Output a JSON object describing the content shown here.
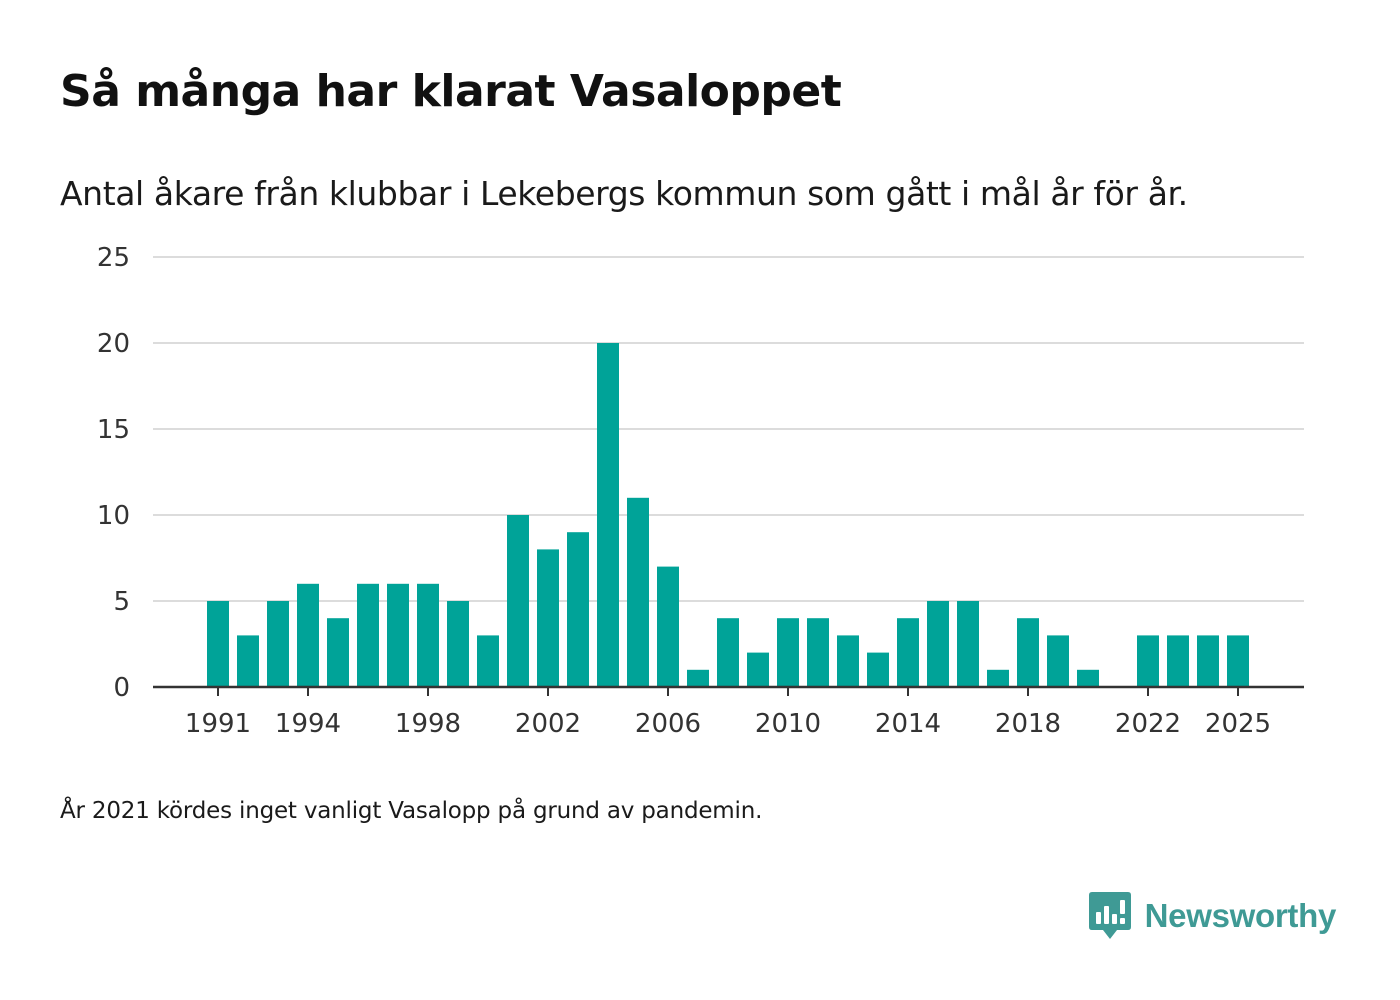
{
  "title": "Så många har klarat Vasaloppet",
  "subtitle": "Antal åkare från klubbar i Lekebergs kommun som gått i mål år för år.",
  "footnote": "År 2021 kördes inget vanligt Vasalopp på grund av pandemin.",
  "brand": {
    "name": "Newsworthy",
    "icon": "newsworthy-logo-icon"
  },
  "colors": {
    "bar": "#00a398",
    "grid": "#dcdcdc",
    "axis": "#333333",
    "text": "#333333",
    "brand": "#3f9a95"
  },
  "chart_data": {
    "type": "bar",
    "title": "Så många har klarat Vasaloppet",
    "subtitle": "Antal åkare från klubbar i Lekebergs kommun som gått i mål år för år.",
    "xlabel": "",
    "ylabel": "",
    "ylim": [
      0,
      25
    ],
    "yticks": [
      0,
      5,
      10,
      15,
      20,
      25
    ],
    "xticks": [
      1991,
      1994,
      1998,
      2002,
      2006,
      2010,
      2014,
      2018,
      2022,
      2025
    ],
    "grid": true,
    "categories": [
      1991,
      1992,
      1993,
      1994,
      1995,
      1996,
      1997,
      1998,
      1999,
      2000,
      2001,
      2002,
      2003,
      2004,
      2005,
      2006,
      2007,
      2008,
      2009,
      2010,
      2011,
      2012,
      2013,
      2014,
      2015,
      2016,
      2017,
      2018,
      2019,
      2020,
      2021,
      2022,
      2023,
      2024,
      2025
    ],
    "values": [
      5,
      3,
      5,
      6,
      4,
      6,
      6,
      6,
      5,
      3,
      10,
      8,
      9,
      20,
      11,
      7,
      1,
      4,
      2,
      4,
      4,
      3,
      2,
      4,
      5,
      5,
      1,
      4,
      3,
      1,
      null,
      3,
      3,
      3,
      3
    ]
  }
}
